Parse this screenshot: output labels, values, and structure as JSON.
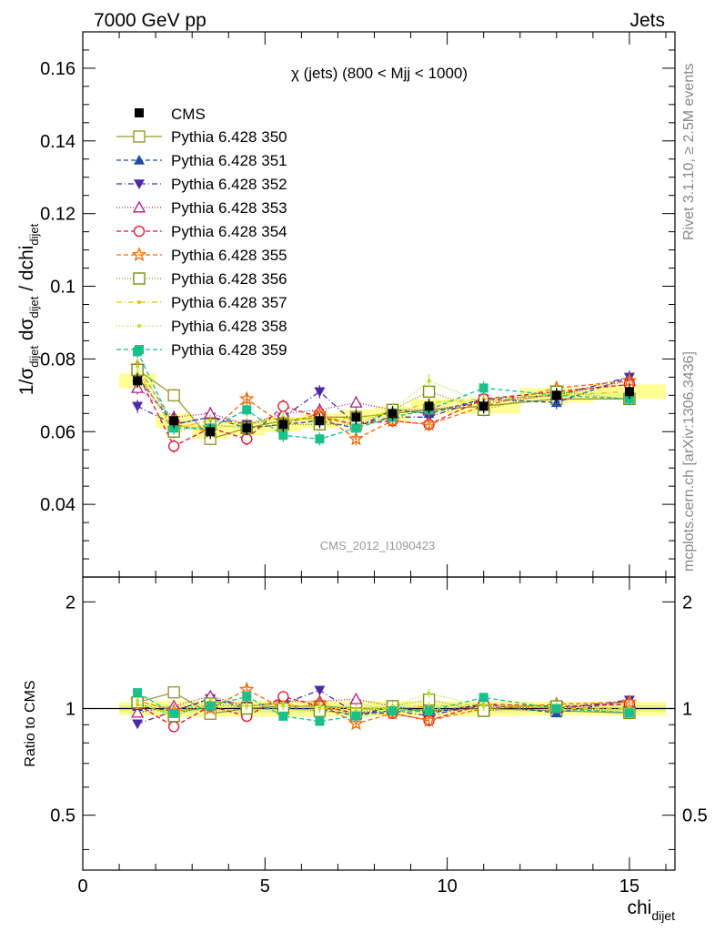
{
  "header": {
    "left": "7000 GeV pp",
    "right": "Jets"
  },
  "side_text": {
    "rivet": "Rivet 3.1.10, ≥ 2.5M events",
    "mcplots": "mcplots.cern.ch [arXiv:1306.3436]"
  },
  "watermark": "CMS_2012_I1090423",
  "chart_data": {
    "type": "scatter",
    "title": "χ (jets) (800 < Mjj < 1000)",
    "ylabel_main": "1/σ_dijet dσ_dijet / dchi_dijet",
    "ylabel_ratio": "Ratio to CMS",
    "xlabel": "chi_dijet",
    "xlim": [
      0,
      16.25
    ],
    "ylim_main": [
      0.02,
      0.17
    ],
    "ylim_ratio": [
      0.35,
      2.35
    ],
    "xticks": [
      0,
      5,
      10,
      15
    ],
    "yticks_main": [
      0.04,
      0.06,
      0.08,
      0.1,
      0.12,
      0.14,
      0.16
    ],
    "yticks_ratio": [
      0.5,
      1,
      2
    ],
    "x": [
      1.5,
      2.5,
      3.5,
      4.5,
      5.5,
      6.5,
      7.5,
      8.5,
      9.5,
      11,
      13,
      15
    ],
    "reference": {
      "name": "CMS",
      "values": [
        0.074,
        0.063,
        0.06,
        0.061,
        0.062,
        0.063,
        0.064,
        0.065,
        0.067,
        0.067,
        0.07,
        0.071
      ],
      "errors": [
        0.002,
        0.002,
        0.002,
        0.002,
        0.002,
        0.002,
        0.002,
        0.002,
        0.002,
        0.002,
        0.002,
        0.002
      ],
      "band_color": "#ffff66"
    },
    "series": [
      {
        "name": "Pythia 6.428 350",
        "color": "#999933",
        "dash": "",
        "marker": "square-open",
        "values": [
          0.077,
          0.07,
          0.058,
          0.061,
          0.063,
          0.064,
          0.064,
          0.065,
          0.066,
          0.067,
          0.069,
          0.069
        ]
      },
      {
        "name": "Pythia 6.428 351",
        "color": "#1f4e9e",
        "dash": "5,3",
        "marker": "triangle-up",
        "values": [
          0.075,
          0.062,
          0.064,
          0.061,
          0.062,
          0.063,
          0.061,
          0.066,
          0.065,
          0.069,
          0.068,
          0.075
        ]
      },
      {
        "name": "Pythia 6.428 352",
        "color": "#4b2aa8",
        "dash": "6,3,1,3",
        "marker": "triangle-down",
        "values": [
          0.067,
          0.062,
          0.064,
          0.062,
          0.064,
          0.071,
          0.062,
          0.064,
          0.064,
          0.069,
          0.07,
          0.075
        ]
      },
      {
        "name": "Pythia 6.428 353",
        "color": "#b01a88",
        "dash": "1,2",
        "marker": "triangle-open",
        "values": [
          0.072,
          0.064,
          0.065,
          0.062,
          0.065,
          0.066,
          0.068,
          0.066,
          0.066,
          0.068,
          0.07,
          0.074
        ]
      },
      {
        "name": "Pythia 6.428 354",
        "color": "#e0102a",
        "dash": "5,3",
        "marker": "circle-open",
        "values": [
          0.076,
          0.056,
          0.061,
          0.058,
          0.067,
          0.064,
          0.062,
          0.063,
          0.062,
          0.069,
          0.071,
          0.073
        ]
      },
      {
        "name": "Pythia 6.428 355",
        "color": "#f06a0a",
        "dash": "5,3",
        "marker": "star-open",
        "values": [
          0.078,
          0.062,
          0.06,
          0.069,
          0.062,
          0.065,
          0.058,
          0.063,
          0.062,
          0.067,
          0.072,
          0.074
        ]
      },
      {
        "name": "Pythia 6.428 356",
        "color": "#7a8f1a",
        "dash": "1,2",
        "marker": "square-open",
        "values": [
          0.077,
          0.06,
          0.062,
          0.061,
          0.062,
          0.062,
          0.062,
          0.066,
          0.071,
          0.066,
          0.071,
          0.069
        ]
      },
      {
        "name": "Pythia 6.428 357",
        "color": "#d8c800",
        "dash": "6,3,1,3",
        "marker": "dot",
        "values": [
          0.076,
          0.061,
          0.063,
          0.062,
          0.064,
          0.063,
          0.064,
          0.065,
          0.068,
          0.069,
          0.07,
          0.071
        ]
      },
      {
        "name": "Pythia 6.428 358",
        "color": "#b8e02a",
        "dash": "1,2",
        "marker": "dot",
        "values": [
          0.078,
          0.062,
          0.061,
          0.062,
          0.063,
          0.064,
          0.063,
          0.066,
          0.074,
          0.068,
          0.071,
          0.07
        ]
      },
      {
        "name": "Pythia 6.428 359",
        "color": "#1abf8a",
        "dash": "5,3",
        "marker": "square-filled",
        "values": [
          0.082,
          0.061,
          0.061,
          0.066,
          0.059,
          0.058,
          0.061,
          0.064,
          0.066,
          0.072,
          0.07,
          0.069
        ]
      }
    ]
  }
}
